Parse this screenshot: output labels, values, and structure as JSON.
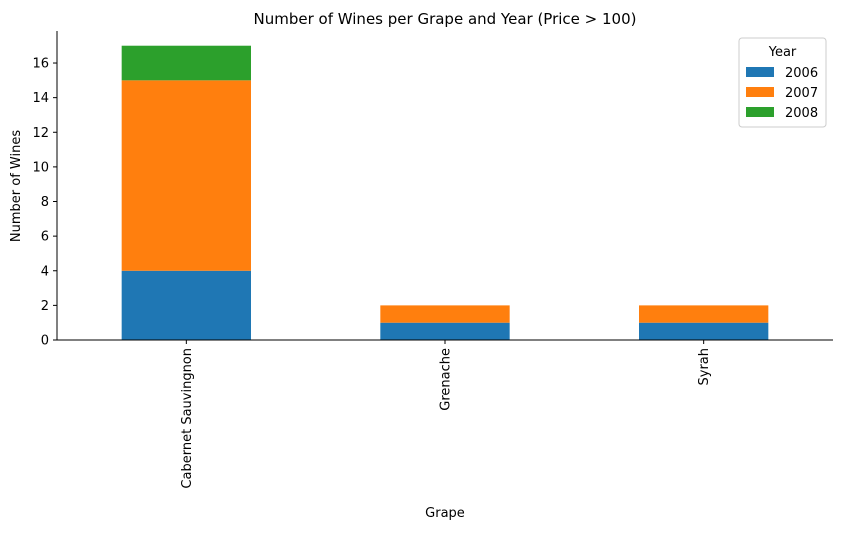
{
  "chart_data": {
    "type": "bar",
    "stacked": true,
    "title": "Number of Wines per Grape and Year (Price > 100)",
    "xlabel": "Grape",
    "ylabel": "Number of Wines",
    "categories": [
      "Cabernet Sauvingnon",
      "Grenache",
      "Syrah"
    ],
    "series": [
      {
        "name": "2006",
        "color": "#1f77b4",
        "values": [
          4,
          1,
          1
        ]
      },
      {
        "name": "2007",
        "color": "#ff7f0e",
        "values": [
          11,
          1,
          1
        ]
      },
      {
        "name": "2008",
        "color": "#2ca02c",
        "values": [
          2,
          0,
          0
        ]
      }
    ],
    "ylim": [
      0,
      17.85
    ],
    "yticks": [
      0,
      2,
      4,
      6,
      8,
      10,
      12,
      14,
      16
    ],
    "ytick_labels": [
      "0",
      "2",
      "4",
      "6",
      "8",
      "10",
      "12",
      "14",
      "16"
    ],
    "legend": {
      "title": "Year",
      "position": "top-right"
    },
    "grid": false,
    "spines": "left-bottom"
  }
}
